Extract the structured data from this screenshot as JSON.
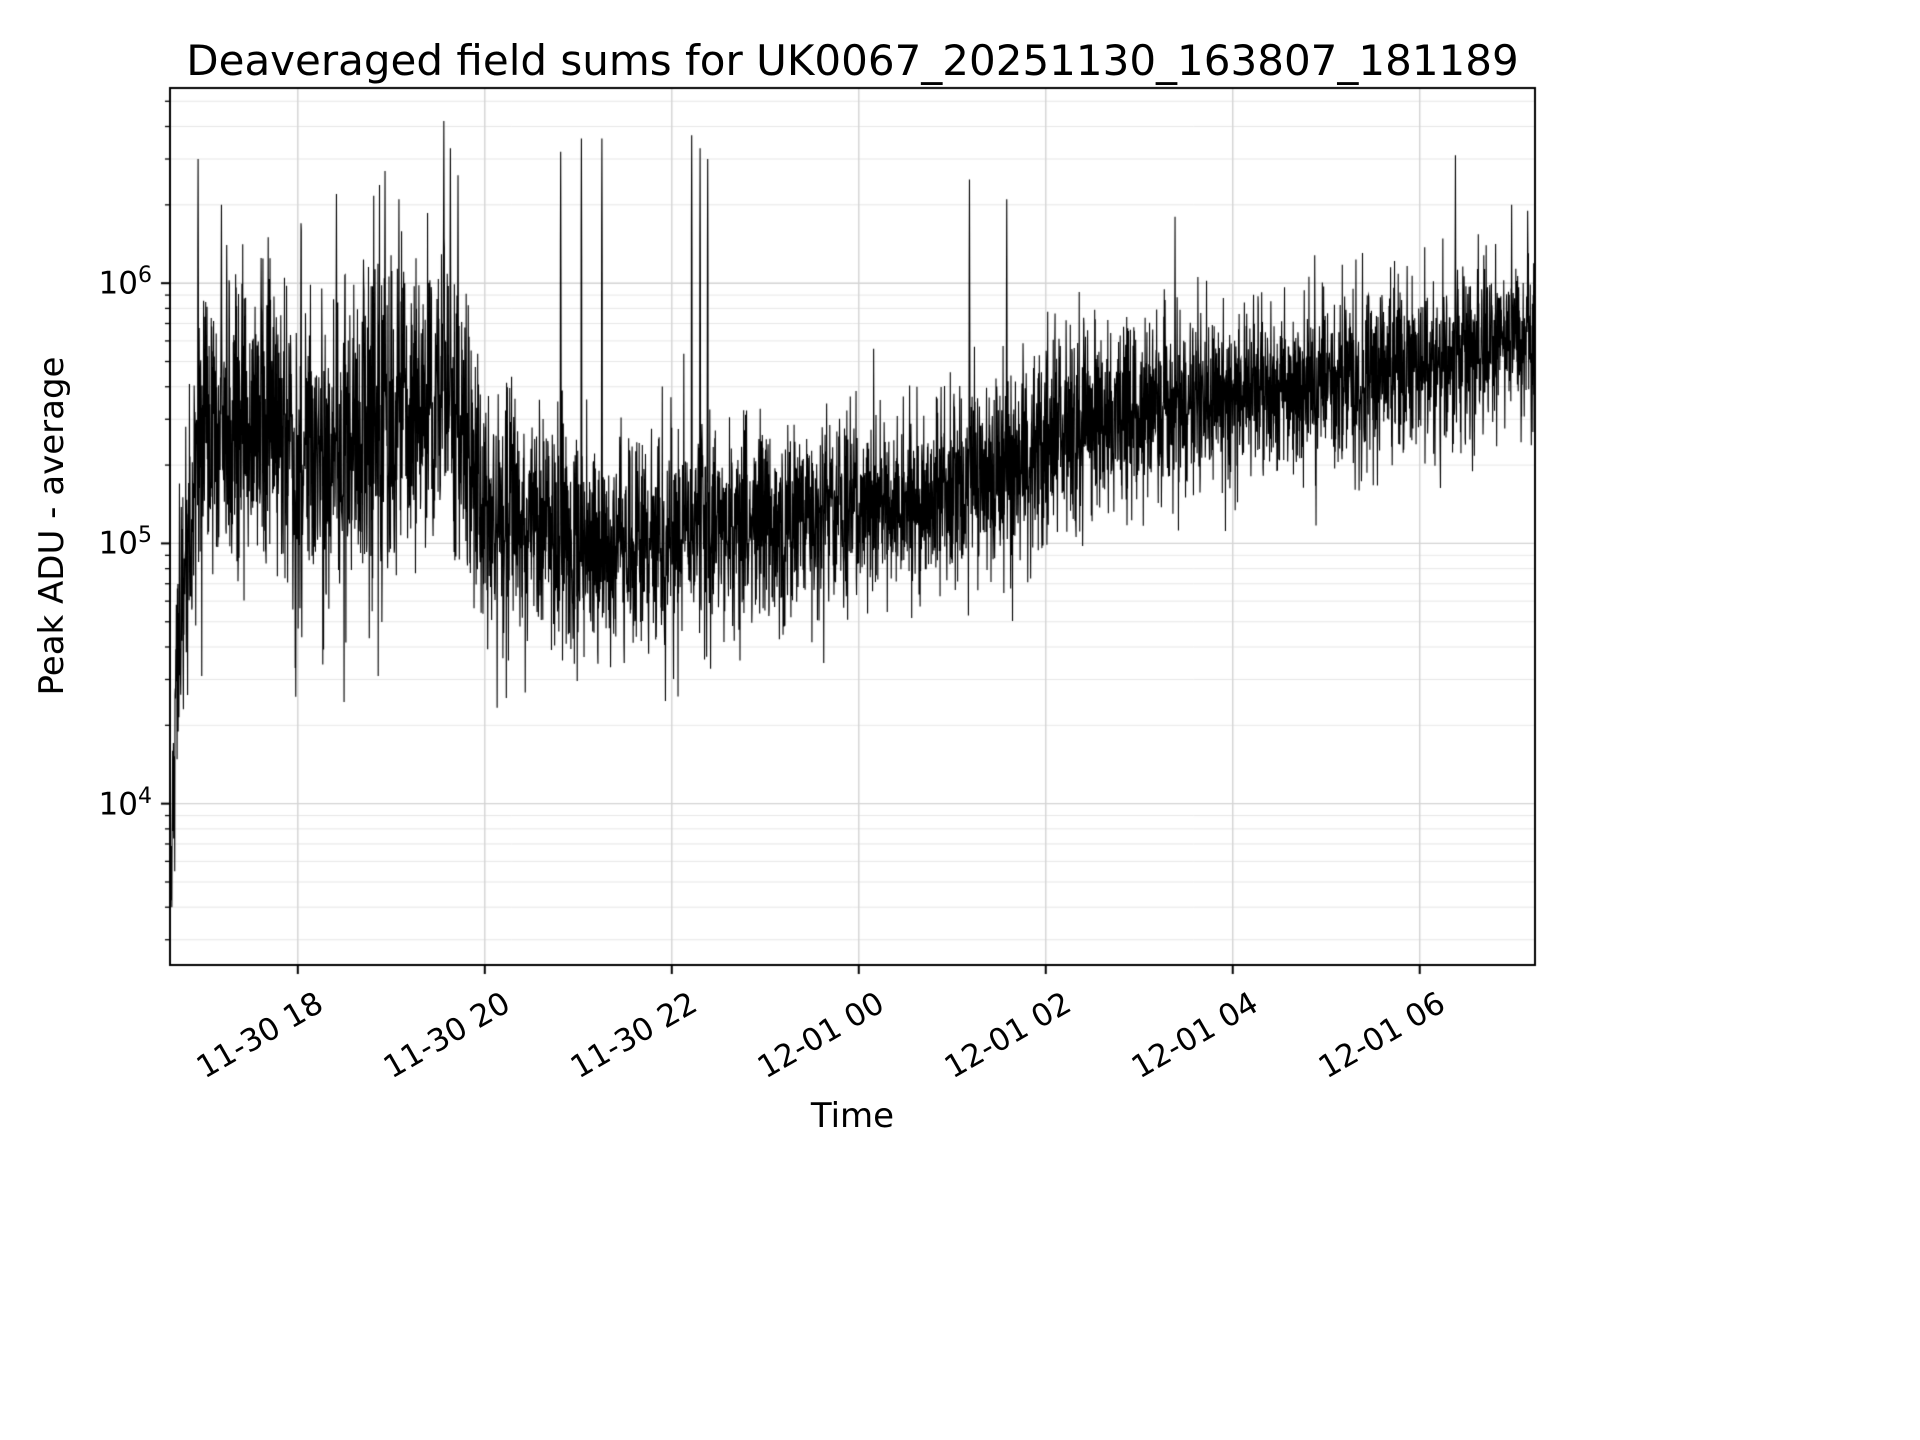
{
  "chart_data": {
    "type": "line",
    "title": "Deaveraged field sums for UK0067_20251130_163807_181189",
    "xlabel": "Time",
    "ylabel": "Peak ADU - average",
    "yscale": "log",
    "grid": true,
    "legend": "none",
    "line_color": "#000000",
    "grid_color_major": "#d4d4d4",
    "grid_color_minor": "#e7e7e7",
    "ylim": [
      2400,
      5600000
    ],
    "ylim_log": [
      3.38,
      6.75
    ],
    "x_start": "11-30 16:38",
    "x_end": "12-01 07:14",
    "duration_hours": 14.6,
    "x_ticks": [
      {
        "label": "11-30 18",
        "hours": 1.367
      },
      {
        "label": "11-30 20",
        "hours": 3.367
      },
      {
        "label": "11-30 22",
        "hours": 5.367
      },
      {
        "label": "12-01 00",
        "hours": 7.367
      },
      {
        "label": "12-01 02",
        "hours": 9.367
      },
      {
        "label": "12-01 04",
        "hours": 11.367
      },
      {
        "label": "12-01 06",
        "hours": 13.367
      }
    ],
    "y_ticks": [
      {
        "base": "10",
        "exp": "4",
        "value": 10000
      },
      {
        "base": "10",
        "exp": "5",
        "value": 100000
      },
      {
        "base": "10",
        "exp": "6",
        "value": 1000000
      }
    ],
    "series_profile": {
      "description": "Dense noisy time series; values are log10(PeakADU). envelope = [hours, median_log10, sigma_log10]; spikes/dips = [hours, value].",
      "n_points": 5200,
      "seed": 42,
      "envelope": [
        [
          0.0,
          3.72,
          0.1
        ],
        [
          0.08,
          4.6,
          0.22
        ],
        [
          0.3,
          5.4,
          0.3
        ],
        [
          0.9,
          5.45,
          0.3
        ],
        [
          1.6,
          5.35,
          0.32
        ],
        [
          2.4,
          5.48,
          0.32
        ],
        [
          2.95,
          5.55,
          0.3
        ],
        [
          3.4,
          5.1,
          0.25
        ],
        [
          4.1,
          5.0,
          0.22
        ],
        [
          5.0,
          4.98,
          0.2
        ],
        [
          5.9,
          5.08,
          0.2
        ],
        [
          6.9,
          5.1,
          0.18
        ],
        [
          7.9,
          5.16,
          0.18
        ],
        [
          8.9,
          5.28,
          0.2
        ],
        [
          9.6,
          5.45,
          0.2
        ],
        [
          10.6,
          5.52,
          0.18
        ],
        [
          11.6,
          5.58,
          0.17
        ],
        [
          12.6,
          5.62,
          0.17
        ],
        [
          13.6,
          5.7,
          0.17
        ],
        [
          14.6,
          5.82,
          0.16
        ]
      ],
      "spikes": [
        [
          0.3,
          3000000
        ],
        [
          0.55,
          2000000
        ],
        [
          1.05,
          1500000
        ],
        [
          1.4,
          1700000
        ],
        [
          1.78,
          2200000
        ],
        [
          2.3,
          2700000
        ],
        [
          2.45,
          2100000
        ],
        [
          2.93,
          4200000
        ],
        [
          3.0,
          3300000
        ],
        [
          3.08,
          2600000
        ],
        [
          4.18,
          3200000
        ],
        [
          4.4,
          3600000
        ],
        [
          4.62,
          3600000
        ],
        [
          5.58,
          3700000
        ],
        [
          5.67,
          3300000
        ],
        [
          5.75,
          3000000
        ],
        [
          8.55,
          2500000
        ],
        [
          8.95,
          2100000
        ],
        [
          10.75,
          1800000
        ],
        [
          13.75,
          3100000
        ],
        [
          14.35,
          2000000
        ],
        [
          14.52,
          1900000
        ]
      ],
      "dips": [
        [
          0.02,
          4000
        ],
        [
          0.05,
          5500
        ]
      ]
    }
  }
}
